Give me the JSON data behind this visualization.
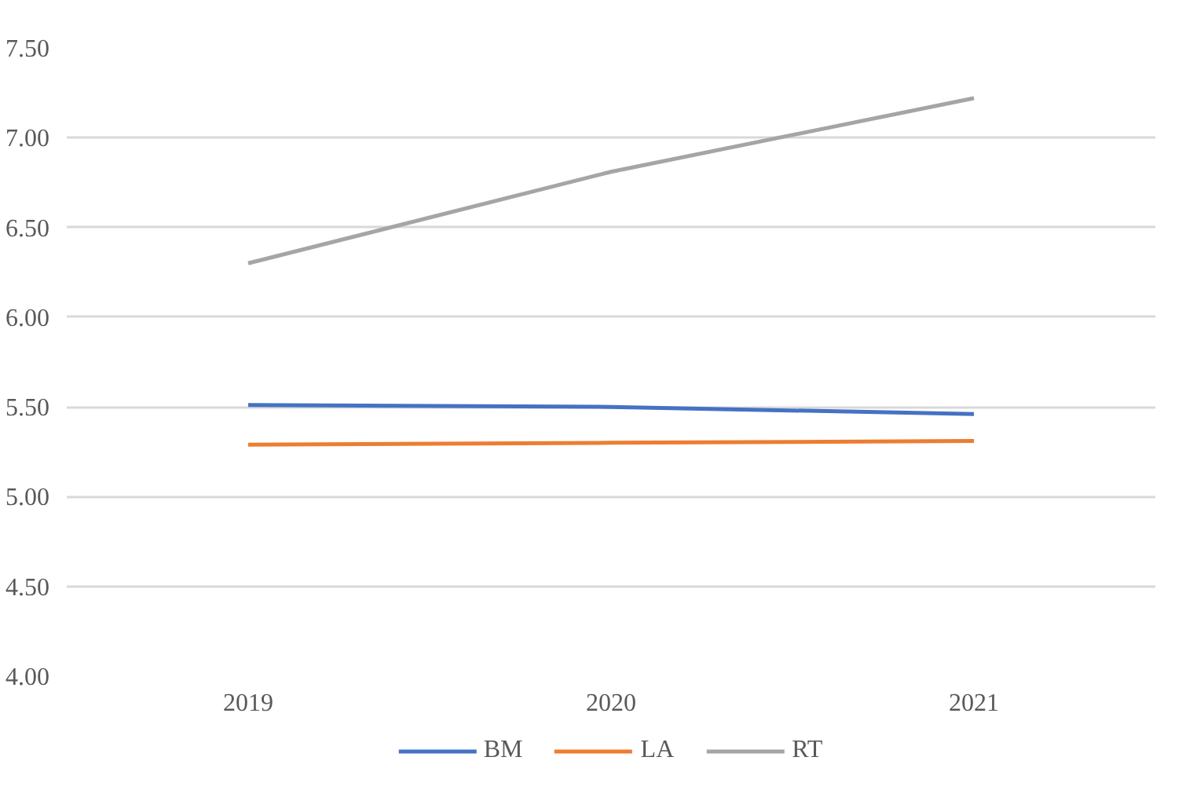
{
  "chart_data": {
    "type": "line",
    "categories": [
      "2019",
      "2020",
      "2021"
    ],
    "series": [
      {
        "name": "BM",
        "color": "#4472c4",
        "values": [
          5.51,
          5.5,
          5.46
        ]
      },
      {
        "name": "LA",
        "color": "#ed7d31",
        "values": [
          5.29,
          5.3,
          5.31
        ]
      },
      {
        "name": "RT",
        "color": "#a5a5a5",
        "values": [
          6.3,
          6.81,
          7.22
        ]
      }
    ],
    "ylim": [
      4,
      7.5
    ],
    "yticks": [
      {
        "value": 4,
        "label": "4.00"
      },
      {
        "value": 4.5,
        "label": "4.50"
      },
      {
        "value": 5,
        "label": "5.00"
      },
      {
        "value": 5.5,
        "label": "5.50"
      },
      {
        "value": 6,
        "label": "6.00"
      },
      {
        "value": 6.5,
        "label": "6.50"
      },
      {
        "value": 7,
        "label": "7.00"
      },
      {
        "value": 7.5,
        "label": "7.50"
      }
    ],
    "grid": "y",
    "legend": "bottom",
    "marker": "none",
    "line_style": "solid"
  }
}
